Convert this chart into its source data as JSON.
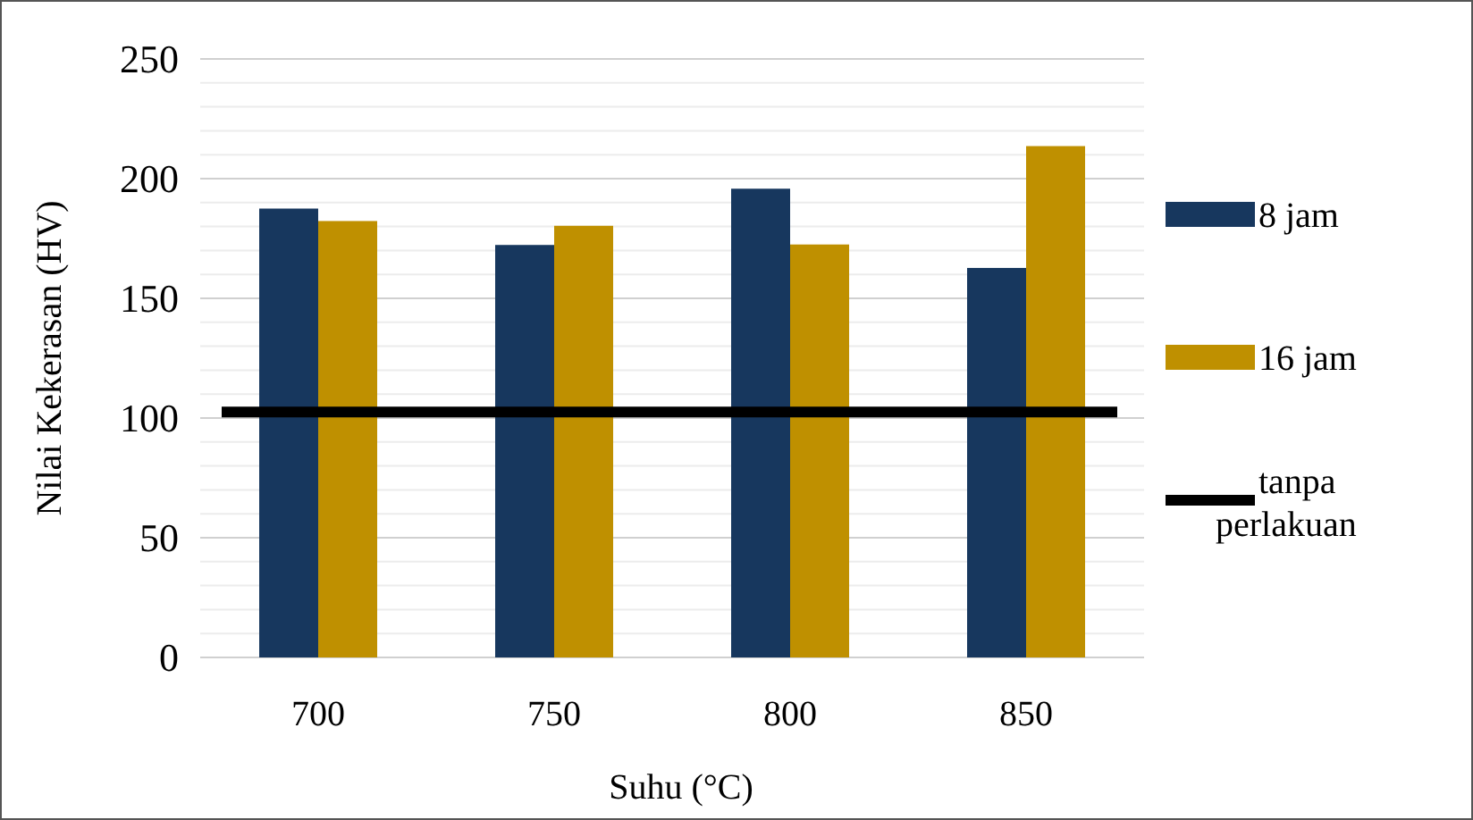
{
  "chart_data": {
    "type": "bar",
    "xlabel": "Suhu (°C)",
    "ylabel": "Nilai Kekerasan (HV)",
    "categories": [
      "700",
      "750",
      "800",
      "850"
    ],
    "series": [
      {
        "name": "8 jam",
        "color": "#17375e",
        "values": [
          187.5,
          172.3,
          195.8,
          162.7
        ]
      },
      {
        "name": "16 jam",
        "color": "#bf9000",
        "values": [
          182.3,
          180.3,
          172.5,
          213.6
        ]
      }
    ],
    "ref_lines": [
      {
        "axis": "y",
        "value": 102.5,
        "label": "tanpa perlakuan",
        "color": "#000000"
      }
    ],
    "ylim": [
      0,
      250
    ],
    "yticks": [
      0,
      {
        "value": 10,
        "label": null
      },
      {
        "value": 20,
        "label": null
      },
      {
        "value": 30,
        "label": null
      },
      {
        "value": 40,
        "label": null
      },
      50,
      {
        "value": 60,
        "label": null
      },
      {
        "value": 70,
        "label": null
      },
      {
        "value": 80,
        "label": null
      },
      {
        "value": 90,
        "label": null
      },
      100,
      {
        "value": 110,
        "label": null
      },
      {
        "value": 120,
        "label": null
      },
      {
        "value": 130,
        "label": null
      },
      {
        "value": 140,
        "label": null
      },
      150,
      {
        "value": 160,
        "label": null
      },
      {
        "value": 170,
        "label": null
      },
      {
        "value": 180,
        "label": null
      },
      {
        "value": 190,
        "label": null
      },
      200,
      {
        "value": 210,
        "label": null
      },
      {
        "value": 220,
        "label": null
      },
      {
        "value": 230,
        "label": null
      },
      {
        "value": 240,
        "label": null
      },
      250
    ],
    "grid": "y",
    "legend": "right"
  }
}
